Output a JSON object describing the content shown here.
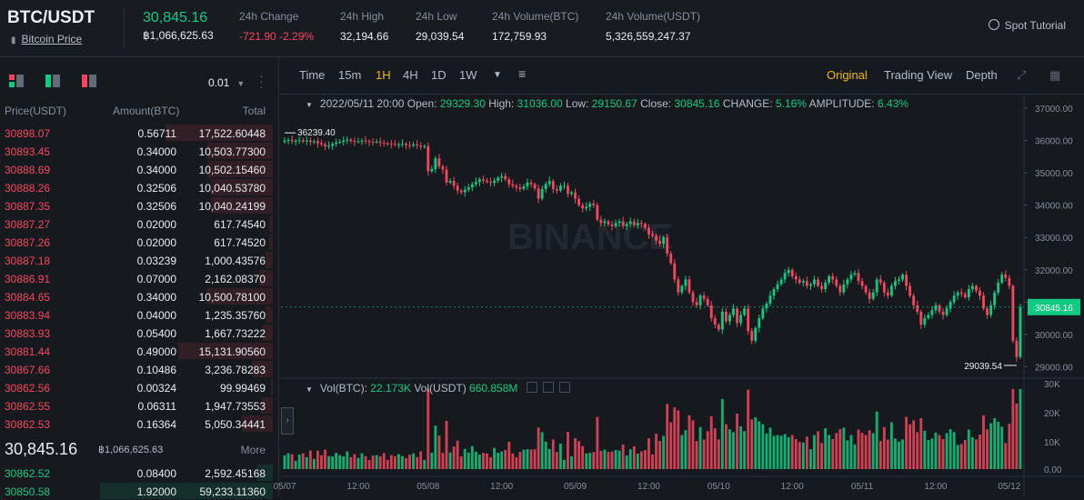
{
  "header": {
    "pair": "BTC/USDT",
    "coin_link": "Bitcoin Price",
    "last_price": "30,845.16",
    "last_price_sub": "฿1,066,625.63",
    "stats": [
      {
        "label": "24h Change",
        "value": "-721.90 -2.29%",
        "color": "#f6465d"
      },
      {
        "label": "24h High",
        "value": "32,194.66"
      },
      {
        "label": "24h Low",
        "value": "29,039.54"
      },
      {
        "label": "24h Volume(BTC)",
        "value": "172,759.93"
      },
      {
        "label": "24h Volume(USDT)",
        "value": "5,326,559,247.37"
      }
    ],
    "tutorial": "Spot Tutorial"
  },
  "orderbook": {
    "precision": "0.01",
    "columns": {
      "price": "Price(USDT)",
      "amount": "Amount(BTC)",
      "total": "Total"
    },
    "asks": [
      {
        "price": "30898.07",
        "amount": "0.56711",
        "total": "17,522.60448",
        "depth": 0.62
      },
      {
        "price": "30893.45",
        "amount": "0.34000",
        "total": "10,503.77300",
        "depth": 0.38
      },
      {
        "price": "30888.69",
        "amount": "0.34000",
        "total": "10,502.15460",
        "depth": 0.38
      },
      {
        "price": "30888.26",
        "amount": "0.32506",
        "total": "10,040.53780",
        "depth": 0.36
      },
      {
        "price": "30887.35",
        "amount": "0.32506",
        "total": "10,040.24199",
        "depth": 0.36
      },
      {
        "price": "30887.27",
        "amount": "0.02000",
        "total": "617.74540",
        "depth": 0.02
      },
      {
        "price": "30887.26",
        "amount": "0.02000",
        "total": "617.74520",
        "depth": 0.02
      },
      {
        "price": "30887.18",
        "amount": "0.03239",
        "total": "1,000.43576",
        "depth": 0.04
      },
      {
        "price": "30886.91",
        "amount": "0.07000",
        "total": "2,162.08370",
        "depth": 0.08
      },
      {
        "price": "30884.65",
        "amount": "0.34000",
        "total": "10,500.78100",
        "depth": 0.38
      },
      {
        "price": "30883.94",
        "amount": "0.04000",
        "total": "1,235.35760",
        "depth": 0.04
      },
      {
        "price": "30883.93",
        "amount": "0.05400",
        "total": "1,667.73222",
        "depth": 0.06
      },
      {
        "price": "30881.44",
        "amount": "0.49000",
        "total": "15,131.90560",
        "depth": 0.55
      },
      {
        "price": "30867.66",
        "amount": "0.10486",
        "total": "3,236.78283",
        "depth": 0.12
      },
      {
        "price": "30862.56",
        "amount": "0.00324",
        "total": "99.99469",
        "depth": 0.01
      },
      {
        "price": "30862.55",
        "amount": "0.06311",
        "total": "1,947.73553",
        "depth": 0.07
      },
      {
        "price": "30862.53",
        "amount": "0.16364",
        "total": "5,050.34441",
        "depth": 0.18
      }
    ],
    "mid_price": "30,845.16",
    "mid_sub": "฿1,066,625.63",
    "more": "More",
    "bids": [
      {
        "price": "30862.52",
        "amount": "0.08400",
        "total": "2,592.45168",
        "depth": 0.09
      },
      {
        "price": "30850.58",
        "amount": "1.92000",
        "total": "59,233.11360",
        "depth": 1.0
      }
    ]
  },
  "chart": {
    "timeframes": [
      "Time",
      "15m",
      "1H",
      "4H",
      "1D",
      "1W"
    ],
    "active_timeframe": "1H",
    "views": [
      "Original",
      "Trading View",
      "Depth"
    ],
    "active_view": "Original",
    "info": {
      "date": "2022/05/11 20:00",
      "open_label": "Open:",
      "open": "29329.30",
      "high_label": "High:",
      "high": "31036.00",
      "low_label": "Low:",
      "low": "29150.67",
      "close_label": "Close:",
      "close": "30845.16",
      "change_label": "CHANGE:",
      "change": "5.16%",
      "amp_label": "AMPLITUDE:",
      "amp": "6.43%"
    },
    "vol_info": {
      "btc_label": "Vol(BTC):",
      "btc": "22.173K",
      "usdt_label": "Vol(USDT)",
      "usdt": "660.858M"
    },
    "watermark": "BINANCE",
    "up_color": "#0ecb81",
    "down_color": "#f6465d"
  },
  "chart_data": {
    "type": "candlestick",
    "y_ticks": [
      29000,
      30000,
      31000,
      32000,
      33000,
      34000,
      35000,
      36000,
      37000
    ],
    "y_tick_labels": [
      "29000.00",
      "30000.00",
      "31000.00",
      "32000.00",
      "33000.00",
      "34000.00",
      "35000.00",
      "36000.00",
      "37000.00"
    ],
    "ylim": [
      28700,
      37200
    ],
    "x_tick_labels": [
      "05/07",
      "12:00",
      "05/08",
      "12:00",
      "05/09",
      "12:00",
      "05/10",
      "12:00",
      "05/11",
      "12:00",
      "05/12"
    ],
    "x_tick_index": [
      0,
      20,
      39,
      59,
      79,
      99,
      118,
      138,
      157,
      177,
      197
    ],
    "high_marker": "36239.40",
    "low_marker": "29039.54",
    "last_price_tag": "30845.16",
    "close": [
      36000,
      36020,
      35980,
      35990,
      36010,
      35970,
      36000,
      35960,
      35980,
      35920,
      35880,
      35820,
      35840,
      35900,
      35940,
      35960,
      36000,
      36030,
      35990,
      35970,
      35980,
      36000,
      35980,
      35960,
      35950,
      35970,
      35930,
      35920,
      35910,
      35900,
      35870,
      35880,
      35900,
      35860,
      35840,
      35880,
      35850,
      35820,
      35830,
      35050,
      35120,
      35450,
      35200,
      35100,
      34700,
      34750,
      34600,
      34450,
      34400,
      34480,
      34550,
      34650,
      34720,
      34800,
      34760,
      34720,
      34690,
      34760,
      34850,
      34900,
      34800,
      34650,
      34600,
      34550,
      34500,
      34580,
      34700,
      34650,
      34520,
      34200,
      34500,
      34650,
      34750,
      34500,
      34450,
      34600,
      34600,
      34350,
      34400,
      34200,
      34000,
      33900,
      33950,
      34050,
      34000,
      33550,
      33450,
      33500,
      33400,
      33350,
      33450,
      33500,
      33350,
      33420,
      33500,
      33380,
      33450,
      33420,
      33300,
      33100,
      33050,
      32900,
      32800,
      33000,
      32500,
      32200,
      31700,
      31300,
      31500,
      31700,
      31300,
      31000,
      30900,
      31200,
      31100,
      30900,
      30500,
      30300,
      30150,
      30700,
      30400,
      30600,
      30800,
      30350,
      30600,
      30800,
      30100,
      29800,
      30200,
      30500,
      30800,
      30950,
      31200,
      31400,
      31550,
      31700,
      31900,
      32000,
      31800,
      31700,
      31600,
      31650,
      31500,
      31550,
      31700,
      31500,
      31400,
      31600,
      31800,
      31700,
      31500,
      31300,
      31550,
      31700,
      31850,
      31900,
      31650,
      31500,
      31300,
      31100,
      31300,
      31700,
      31600,
      31300,
      31200,
      31500,
      31650,
      31700,
      31850,
      31500,
      31200,
      30900,
      30700,
      30300,
      30500,
      30600,
      30750,
      30900,
      30700,
      30600,
      30800,
      31000,
      31200,
      31300,
      31250,
      31150,
      31400,
      31500,
      31350,
      31200,
      30800,
      30600,
      30900,
      31300,
      31600,
      31850,
      31750,
      31500,
      29800,
      29300,
      30845
    ]
  }
}
